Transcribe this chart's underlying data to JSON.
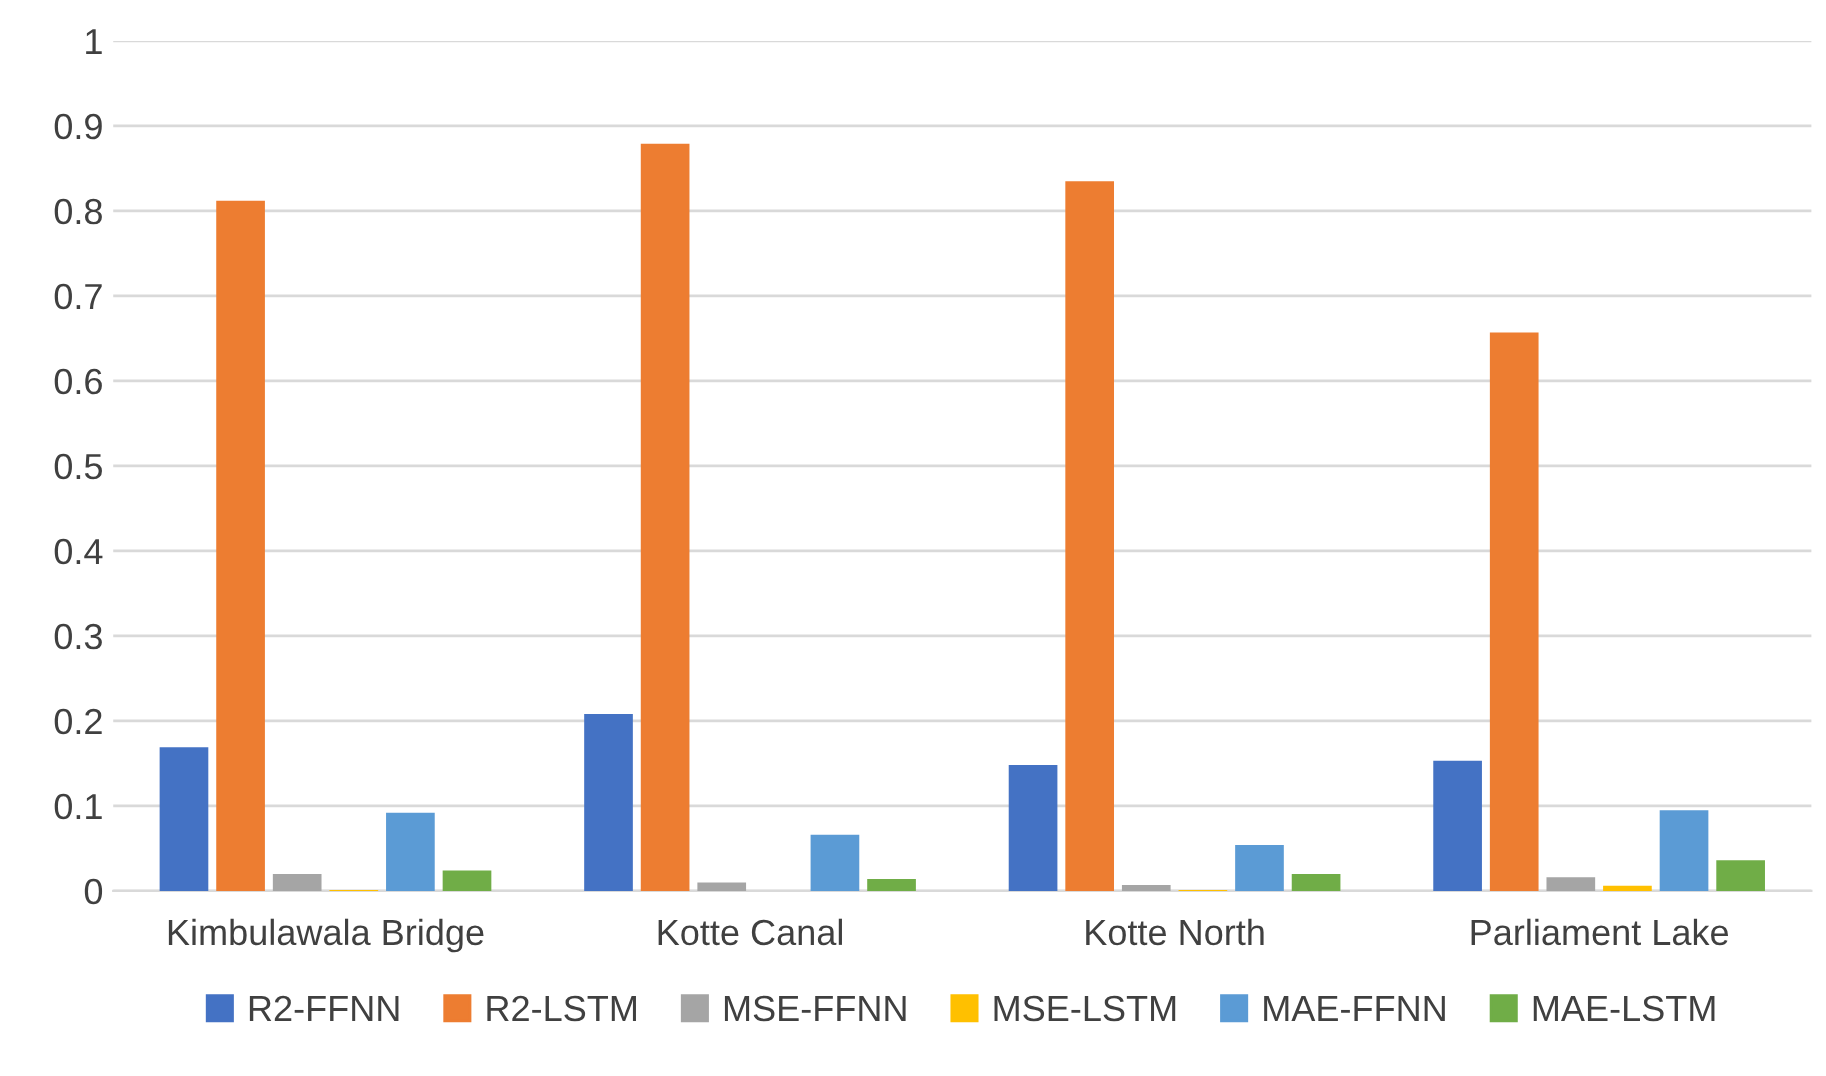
{
  "chart_data": {
    "type": "bar",
    "categories": [
      "Kimbulawala Bridge",
      "Kotte Canal",
      "Kotte North",
      "Parliament Lake"
    ],
    "series": [
      {
        "name": "R2-FFNN",
        "color": "#4472c4",
        "values": [
          0.169,
          0.208,
          0.148,
          0.153
        ]
      },
      {
        "name": "R2-LSTM",
        "color": "#ed7d31",
        "values": [
          0.812,
          0.879,
          0.835,
          0.657
        ]
      },
      {
        "name": "MSE-FFNN",
        "color": "#a5a5a5",
        "values": [
          0.02,
          0.01,
          0.007,
          0.016
        ]
      },
      {
        "name": "MSE-LSTM",
        "color": "#ffc000",
        "values": [
          0.001,
          0.0,
          0.001,
          0.006
        ]
      },
      {
        "name": "MAE-FFNN",
        "color": "#5b9bd5",
        "values": [
          0.092,
          0.066,
          0.054,
          0.095
        ]
      },
      {
        "name": "MAE-LSTM",
        "color": "#70ad47",
        "values": [
          0.024,
          0.014,
          0.02,
          0.036
        ]
      }
    ],
    "ylim": [
      0,
      1
    ],
    "yticks": [
      0,
      0.1,
      0.2,
      0.3,
      0.4,
      0.5,
      0.6,
      0.7,
      0.8,
      0.9,
      1
    ],
    "grid": "y",
    "legend": "bottom"
  }
}
